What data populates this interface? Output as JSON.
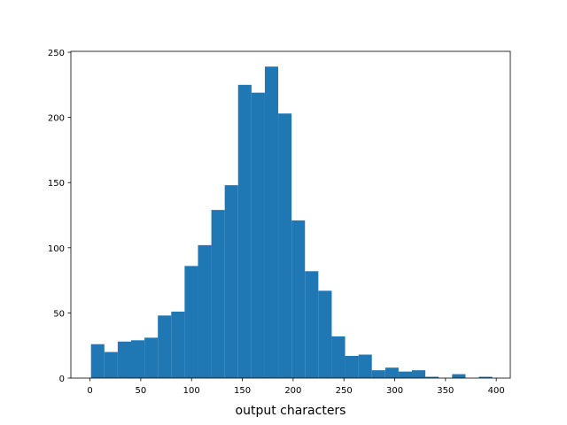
{
  "chart_data": {
    "type": "histogram",
    "xlabel": "output characters",
    "bins": [
      1,
      14.17,
      27.33,
      40.5,
      53.67,
      66.83,
      80,
      93.17,
      106.33,
      119.5,
      132.67,
      145.83,
      159,
      172.17,
      185.33,
      198.5,
      211.67,
      224.83,
      238,
      251.17,
      264.33,
      277.5,
      290.67,
      303.83,
      317,
      330.17,
      343.33,
      356.5,
      369.67,
      382.83,
      396
    ],
    "values": [
      26,
      20,
      28,
      29,
      31,
      48,
      51,
      86,
      102,
      129,
      148,
      225,
      219,
      239,
      203,
      121,
      82,
      67,
      32,
      17,
      18,
      6,
      8,
      5,
      6,
      1,
      0,
      3,
      0,
      1
    ],
    "color": "#1f77b4",
    "xlim": [
      -18.8,
      413.8
    ],
    "xticks": [
      0,
      50,
      100,
      150,
      200,
      250,
      300,
      350,
      400
    ],
    "ylim": [
      0,
      250.7
    ],
    "yticks": [
      0,
      50,
      100,
      150,
      200,
      250
    ]
  }
}
